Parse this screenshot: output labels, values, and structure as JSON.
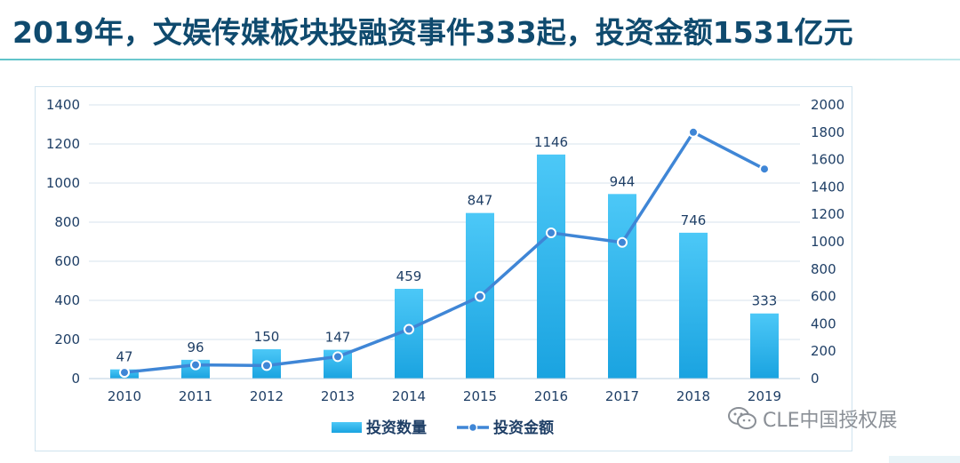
{
  "title": "2019年，文娱传媒板块投融资事件333起，投资金额1531亿元",
  "watermark": "CLE中国授权展",
  "colors": {
    "bar_top": "#4cc8f7",
    "bar_bottom": "#1aa3e0",
    "line": "#3f86d6",
    "axis_text": "#1f3f66",
    "grid": "#d7e3ee"
  },
  "chart_data": {
    "type": "bar",
    "categories": [
      "2010",
      "2011",
      "2012",
      "2013",
      "2014",
      "2015",
      "2016",
      "2017",
      "2018",
      "2019"
    ],
    "series": [
      {
        "name": "投资数量",
        "type": "bar",
        "axis": "left",
        "values": [
          47,
          96,
          150,
          147,
          459,
          847,
          1146,
          944,
          746,
          333
        ]
      },
      {
        "name": "投资金额",
        "type": "line",
        "axis": "right",
        "values": [
          45,
          100,
          95,
          160,
          360,
          600,
          1065,
          995,
          1800,
          1531
        ]
      }
    ],
    "y_left": {
      "min": 0,
      "max": 1400,
      "ticks": [
        "0",
        "200",
        "400",
        "600",
        "800",
        "1000",
        "1200",
        "1400"
      ]
    },
    "y_right": {
      "min": 0,
      "max": 2000,
      "ticks": [
        "0",
        "200",
        "400",
        "600",
        "800",
        "1000",
        "1200",
        "1400",
        "1600",
        "1800",
        "2000"
      ]
    },
    "bar_labels": [
      "47",
      "96",
      "150",
      "147",
      "459",
      "847",
      "1146",
      "944",
      "746",
      "333"
    ],
    "grid": true,
    "legend_position": "bottom-center"
  }
}
